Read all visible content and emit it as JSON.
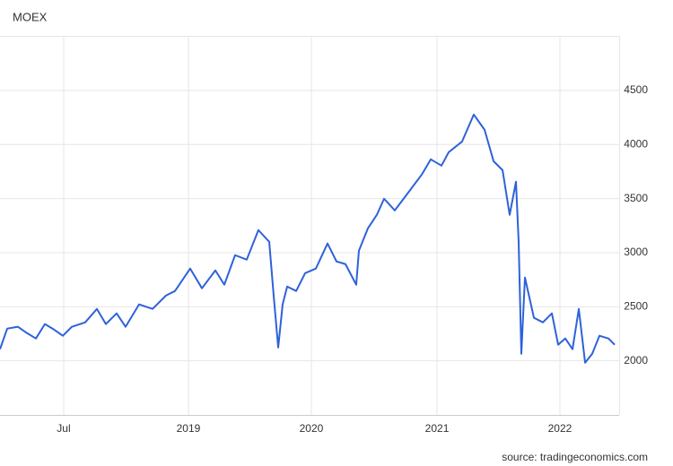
{
  "chart_data": {
    "type": "line",
    "title": "MOEX",
    "source": "source: tradingeconomics.com",
    "x": [
      0,
      0.7,
      1.74,
      2.61,
      3.48,
      4.35,
      5.22,
      6.09,
      6.96,
      8.26,
      9.39,
      10.26,
      11.3,
      12.17,
      13.48,
      14.78,
      16.09,
      16.96,
      18.43,
      19.57,
      20.87,
      21.74,
      22.78,
      23.91,
      25.04,
      26.09,
      26.52,
      26.96,
      27.39,
      27.83,
      28.7,
      29.57,
      30.61,
      31.74,
      32.61,
      33.48,
      34.52,
      34.78,
      35.65,
      36.52,
      37.22,
      38.26,
      39.57,
      40.87,
      41.74,
      42.78,
      43.48,
      44.78,
      45.91,
      46.96,
      47.83,
      48.7,
      49.39,
      50,
      50.26,
      50.52,
      50.87,
      51.74,
      52.61,
      53.48,
      54.09,
      54.78,
      55.48,
      56.09,
      56.7,
      57.39,
      58.09,
      58.96,
      59.57
    ],
    "series": [
      {
        "name": "MOEX",
        "color": "#2e62d9",
        "values": [
          2108,
          2298,
          2315,
          2257,
          2207,
          2340,
          2290,
          2232,
          2315,
          2356,
          2480,
          2340,
          2439,
          2315,
          2522,
          2480,
          2604,
          2646,
          2853,
          2671,
          2836,
          2704,
          2977,
          2936,
          3209,
          3101,
          2604,
          2124,
          2522,
          2687,
          2646,
          2811,
          2853,
          3085,
          2919,
          2894,
          2704,
          3018,
          3225,
          3350,
          3499,
          3391,
          3557,
          3722,
          3863,
          3805,
          3929,
          4028,
          4277,
          4136,
          3846,
          3763,
          3350,
          3656,
          3101,
          2066,
          2770,
          2398,
          2356,
          2439,
          2149,
          2207,
          2108,
          2480,
          1983,
          2066,
          2232,
          2207,
          2149
        ]
      }
    ],
    "xlim": [
      0,
      60
    ],
    "xticks": [
      {
        "value": 6.17,
        "label": "Jul"
      },
      {
        "value": 18.26,
        "label": "2019"
      },
      {
        "value": 30.17,
        "label": "2020"
      },
      {
        "value": 42.35,
        "label": "2021"
      },
      {
        "value": 54.26,
        "label": "2022"
      }
    ],
    "ylim": [
      1500,
      5000
    ],
    "yticks": [
      2000,
      2500,
      3000,
      3500,
      4000,
      4500
    ],
    "grid": true
  }
}
